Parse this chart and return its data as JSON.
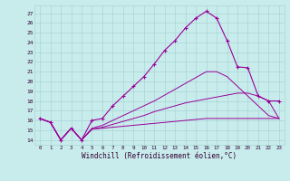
{
  "xlabel": "Windchill (Refroidissement éolien,°C)",
  "x_ticks": [
    0,
    1,
    2,
    3,
    4,
    5,
    6,
    7,
    8,
    9,
    10,
    11,
    12,
    13,
    14,
    15,
    16,
    17,
    18,
    19,
    20,
    21,
    22,
    23
  ],
  "y_ticks": [
    14,
    15,
    16,
    17,
    18,
    19,
    20,
    21,
    22,
    23,
    24,
    25,
    26,
    27
  ],
  "ylim": [
    13.5,
    27.8
  ],
  "xlim": [
    -0.5,
    23.5
  ],
  "background_color": "#c8ecec",
  "line_color": "#990099",
  "grid_color": "#aad4d4",
  "line1_x": [
    0,
    1,
    2,
    3,
    4,
    5,
    6,
    7,
    8,
    9,
    10,
    11,
    12,
    13,
    14,
    15,
    16,
    17,
    18,
    19,
    20,
    21,
    22,
    23
  ],
  "line1_y": [
    16.2,
    15.8,
    14.0,
    15.2,
    14.0,
    16.0,
    16.2,
    17.5,
    18.5,
    19.5,
    20.5,
    21.8,
    23.2,
    24.2,
    25.5,
    26.5,
    27.2,
    26.5,
    24.2,
    21.5,
    21.4,
    18.5,
    18.0,
    18.0
  ],
  "line2_x": [
    0,
    1,
    2,
    3,
    4,
    5,
    6,
    7,
    8,
    9,
    10,
    11,
    12,
    13,
    14,
    15,
    16,
    17,
    18,
    19,
    20,
    21,
    22,
    23
  ],
  "line2_y": [
    16.2,
    15.8,
    14.0,
    15.2,
    14.0,
    15.1,
    15.2,
    15.3,
    15.4,
    15.5,
    15.6,
    15.7,
    15.8,
    15.9,
    16.0,
    16.1,
    16.2,
    16.2,
    16.2,
    16.2,
    16.2,
    16.2,
    16.2,
    16.2
  ],
  "line3_x": [
    0,
    1,
    2,
    3,
    4,
    5,
    6,
    7,
    8,
    9,
    10,
    11,
    12,
    13,
    14,
    15,
    16,
    17,
    18,
    19,
    20,
    21,
    22,
    23
  ],
  "line3_y": [
    16.2,
    15.8,
    14.0,
    15.2,
    14.0,
    15.1,
    15.3,
    15.6,
    15.9,
    16.2,
    16.5,
    16.9,
    17.2,
    17.5,
    17.8,
    18.0,
    18.2,
    18.4,
    18.6,
    18.8,
    18.8,
    18.5,
    18.0,
    16.2
  ],
  "line4_x": [
    0,
    1,
    2,
    3,
    4,
    5,
    6,
    7,
    8,
    9,
    10,
    11,
    12,
    13,
    14,
    15,
    16,
    17,
    18,
    19,
    20,
    21,
    22,
    23
  ],
  "line4_y": [
    16.2,
    15.8,
    14.0,
    15.2,
    14.0,
    15.2,
    15.5,
    16.0,
    16.5,
    17.0,
    17.5,
    18.0,
    18.6,
    19.2,
    19.8,
    20.4,
    21.0,
    21.0,
    20.5,
    19.5,
    18.5,
    17.5,
    16.5,
    16.2
  ]
}
